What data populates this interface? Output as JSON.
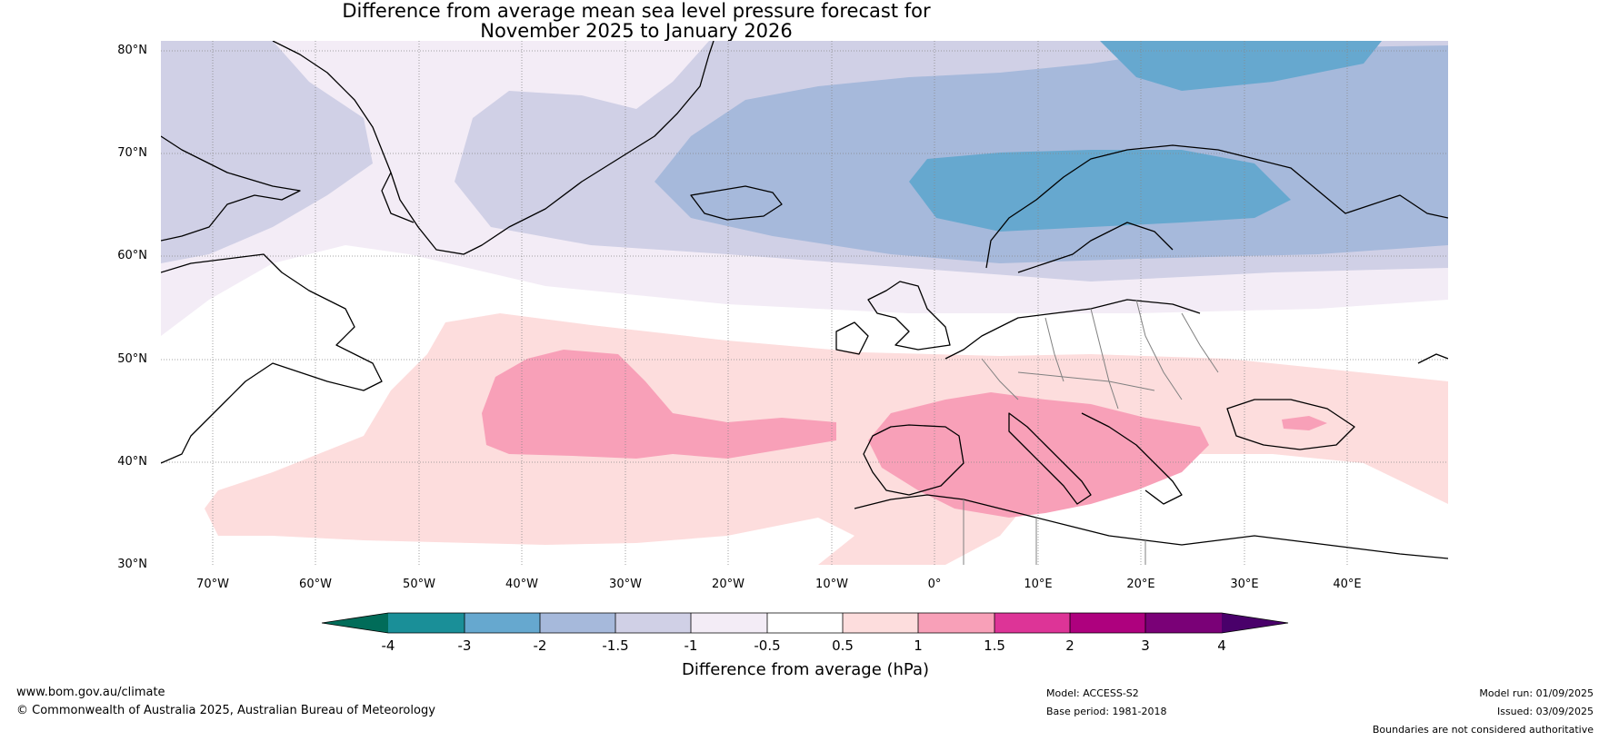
{
  "title": {
    "line1": "Difference from average mean sea level pressure forecast for",
    "line2": "November 2025 to January 2026"
  },
  "axes": {
    "latitude_labels": [
      "80°N",
      "70°N",
      "60°N",
      "50°N",
      "40°N",
      "30°N"
    ],
    "longitude_labels": [
      "70°W",
      "60°W",
      "50°W",
      "40°W",
      "30°W",
      "20°W",
      "10°W",
      "0°",
      "10°E",
      "20°E",
      "30°E",
      "40°E"
    ]
  },
  "colorbar": {
    "ticks": [
      "-4",
      "-3",
      "-2",
      "-1.5",
      "-1",
      "-0.5",
      "0.5",
      "1",
      "1.5",
      "2",
      "3",
      "4"
    ],
    "label": "Difference from average (hPa)",
    "colors": [
      "#1a8f98",
      "#66a8cf",
      "#a6b9db",
      "#d0d0e6",
      "#f3ecf6",
      "#ffffff",
      "#fddddd",
      "#f8a0b8",
      "#dd3497",
      "#ae017e",
      "#7a0177"
    ],
    "extend_low_color": "#016c59",
    "extend_high_color": "#49006a"
  },
  "footer": {
    "website": "www.bom.gov.au/climate",
    "copyright": "© Commonwealth of Australia 2025, Australian Bureau of Meteorology",
    "model": "Model: ACCESS-S2",
    "base_period": "Base period: 1981-2018",
    "model_run": "Model run: 01/09/2025",
    "issued": "Issued: 03/09/2025",
    "disclaimer": "Boundaries are not considered authoritative"
  }
}
